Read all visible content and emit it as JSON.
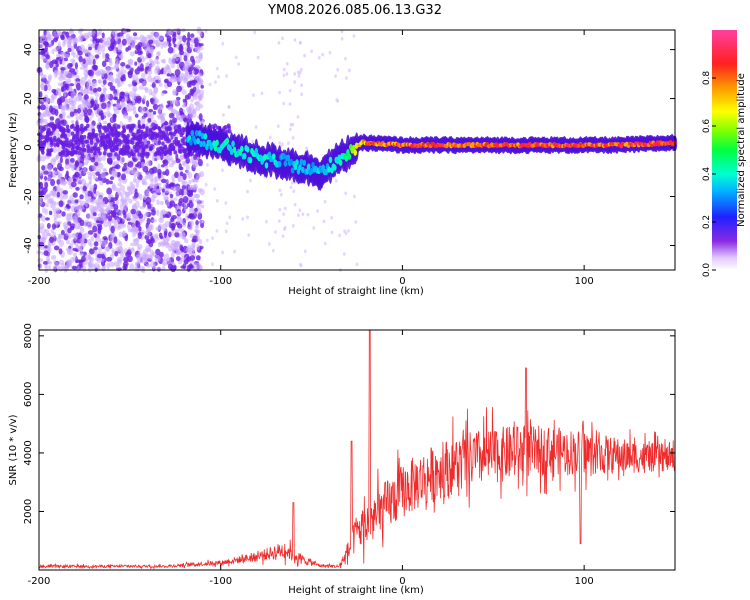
{
  "title": "YM08.2026.085.06.13.G32",
  "colors": {
    "signal": "#ee2222",
    "snr_line": "#ee2c2c",
    "noise": "#6a1fe0"
  },
  "chart_data": [
    {
      "type": "heatmap",
      "name": "spectrogram",
      "xlabel": "Height of straight line (km)",
      "ylabel": "Frequency (Hz)",
      "xlim": [
        -200,
        150
      ],
      "ylim": [
        -50,
        48
      ],
      "xticks": [
        -200,
        -100,
        0,
        100
      ],
      "xtick_labels": [
        "-200",
        "-100",
        "0",
        "100"
      ],
      "yticks": [
        -40,
        -20,
        0,
        20,
        40
      ],
      "ytick_labels": [
        "-40",
        "-20",
        "0",
        "20",
        "40"
      ],
      "colorbar": {
        "label": "Normalized spectral amplitude",
        "range": [
          0,
          1
        ],
        "ticks": [
          0,
          0.2,
          0.4,
          0.6,
          0.8
        ],
        "tick_labels": [
          "0.0",
          "0.2",
          "0.4",
          "0.6",
          "0.8"
        ]
      },
      "ridge": {
        "x": [
          -115,
          -105,
          -95,
          -85,
          -75,
          -65,
          -55,
          -45,
          -35,
          -28,
          -22,
          0,
          20,
          40,
          60,
          80,
          100,
          120,
          150
        ],
        "freq": [
          4,
          2,
          0,
          -3,
          -5,
          -6,
          -8,
          -10,
          -5,
          -1,
          2,
          1,
          1,
          1,
          1,
          1,
          1,
          1,
          2
        ],
        "amplitude": [
          0.35,
          0.4,
          0.4,
          0.4,
          0.4,
          0.35,
          0.35,
          0.35,
          0.4,
          0.55,
          0.75,
          0.85,
          0.85,
          0.85,
          0.85,
          0.85,
          0.85,
          0.85,
          0.85
        ]
      }
    },
    {
      "type": "line",
      "name": "snr",
      "xlabel": "Height of straight line (km)",
      "ylabel": "SNR (10 * v/v)",
      "xlim": [
        -200,
        150
      ],
      "ylim": [
        0,
        8200
      ],
      "xticks": [
        -200,
        -100,
        0,
        100
      ],
      "xtick_labels": [
        "-200",
        "-100",
        "0",
        "100"
      ],
      "yticks": [
        2000,
        4000,
        6000,
        8000
      ],
      "ytick_labels": [
        "2000",
        "4000",
        "6000",
        "8000"
      ],
      "envelope": {
        "x": [
          -200,
          -130,
          -100,
          -80,
          -65,
          -55,
          -45,
          -35,
          -30,
          -25,
          -15,
          0,
          20,
          40,
          60,
          80,
          100,
          120,
          150
        ],
        "mean": [
          120,
          130,
          250,
          450,
          700,
          350,
          150,
          120,
          600,
          1300,
          1800,
          2700,
          3400,
          3800,
          4000,
          4100,
          4000,
          3900,
          3800
        ],
        "spread": [
          80,
          80,
          150,
          300,
          550,
          300,
          100,
          100,
          700,
          1200,
          1600,
          1700,
          1800,
          1800,
          1700,
          1500,
          1400,
          1100,
          800
        ]
      },
      "peaks": [
        {
          "x": -60,
          "y": 2300
        },
        {
          "x": -18,
          "y": 8200
        },
        {
          "x": -28,
          "y": 4400
        },
        {
          "x": 68,
          "y": 6900
        },
        {
          "x": 98,
          "y": 900
        }
      ]
    }
  ]
}
